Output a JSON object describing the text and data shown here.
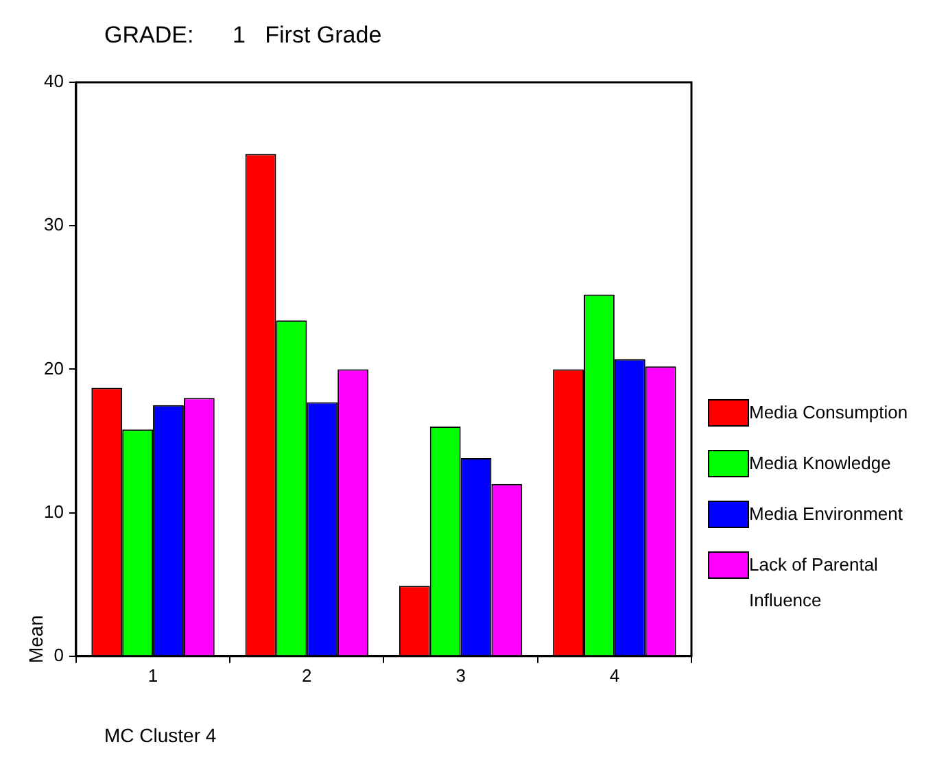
{
  "chart_data": {
    "type": "bar",
    "title": "GRADE:      1   First Grade",
    "xlabel": "MC Cluster 4",
    "ylabel": "Mean",
    "categories": [
      "1",
      "2",
      "3",
      "4"
    ],
    "series": [
      {
        "name": "Media Consumption",
        "color": "#ff0000",
        "values": [
          18.7,
          35.0,
          4.9,
          20.0
        ]
      },
      {
        "name": "Media Knowledge",
        "color": "#00ff00",
        "values": [
          15.8,
          23.4,
          16.0,
          25.2
        ]
      },
      {
        "name": "Media Environment",
        "color": "#0000ff",
        "values": [
          17.5,
          17.7,
          13.8,
          20.7
        ]
      },
      {
        "name": "Lack of Parental Influence",
        "color": "#ff00ff",
        "values": [
          18.0,
          20.0,
          12.0,
          20.2
        ]
      }
    ],
    "ylim": [
      0,
      40
    ],
    "yticks": [
      0,
      10,
      20,
      30,
      40
    ],
    "grid": false,
    "legend": "right"
  }
}
